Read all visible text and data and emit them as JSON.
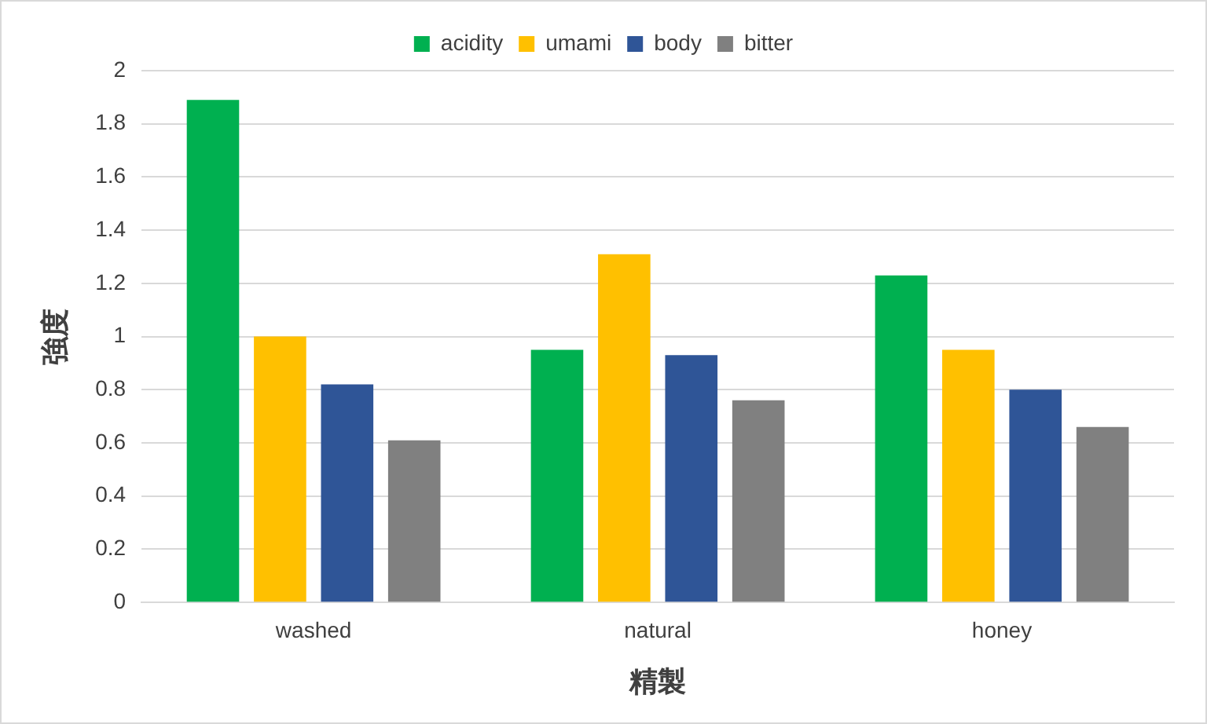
{
  "chart_data": {
    "type": "bar",
    "xlabel": "精製",
    "ylabel": "強度",
    "categories": [
      "washed",
      "natural",
      "honey"
    ],
    "series": [
      {
        "name": "acidity",
        "color": "#00b050",
        "values": [
          1.89,
          0.95,
          1.23
        ]
      },
      {
        "name": "umami",
        "color": "#ffc000",
        "values": [
          1.0,
          1.31,
          0.95
        ]
      },
      {
        "name": "body",
        "color": "#2f5597",
        "values": [
          0.82,
          0.93,
          0.8
        ]
      },
      {
        "name": "bitter",
        "color": "#808080",
        "values": [
          0.61,
          0.76,
          0.66
        ]
      }
    ],
    "ylim": [
      0,
      2
    ],
    "yticks": [
      0,
      0.2,
      0.4,
      0.6,
      0.8,
      1,
      1.2,
      1.4,
      1.6,
      1.8,
      2
    ],
    "grid": "y",
    "legend": "top"
  }
}
